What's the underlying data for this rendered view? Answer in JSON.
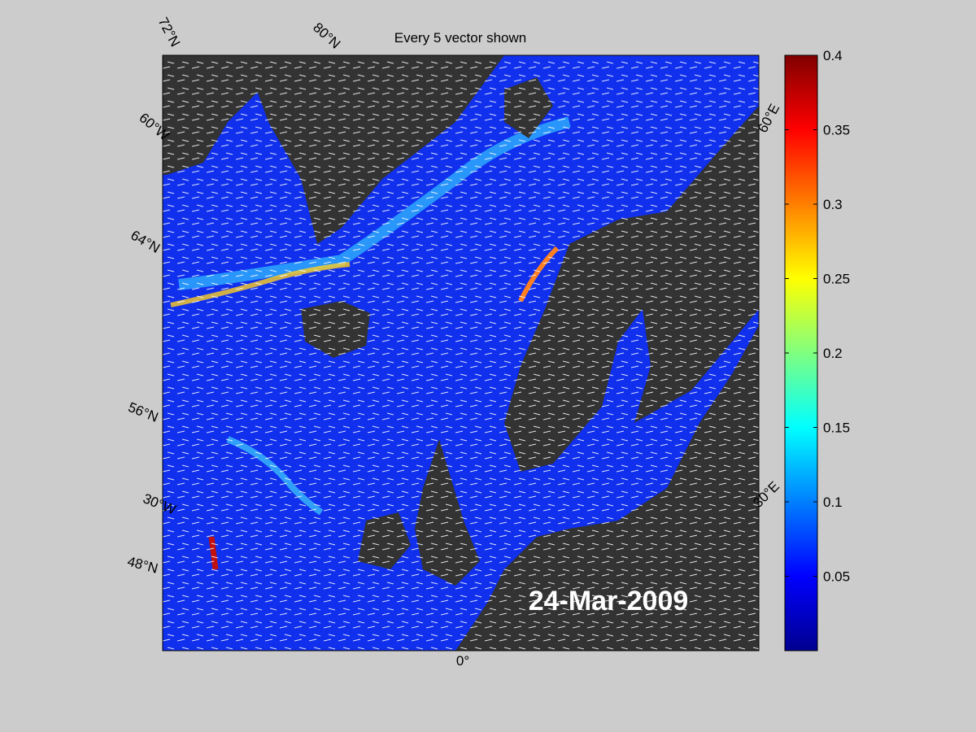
{
  "map": {
    "title": "Every 5 vector shown",
    "date": "24-Mar-2009",
    "graticule_labels": [
      "72°N",
      "80°N",
      "60°W",
      "64°N",
      "56°N",
      "30°W",
      "48°N",
      "0°",
      "30°E",
      "60°E"
    ]
  },
  "colorbar": {
    "ylim": [
      0,
      0.4
    ],
    "yticks": [
      0.05,
      0.1,
      0.15,
      0.2,
      0.25,
      0.3,
      0.35,
      0.4
    ]
  }
}
